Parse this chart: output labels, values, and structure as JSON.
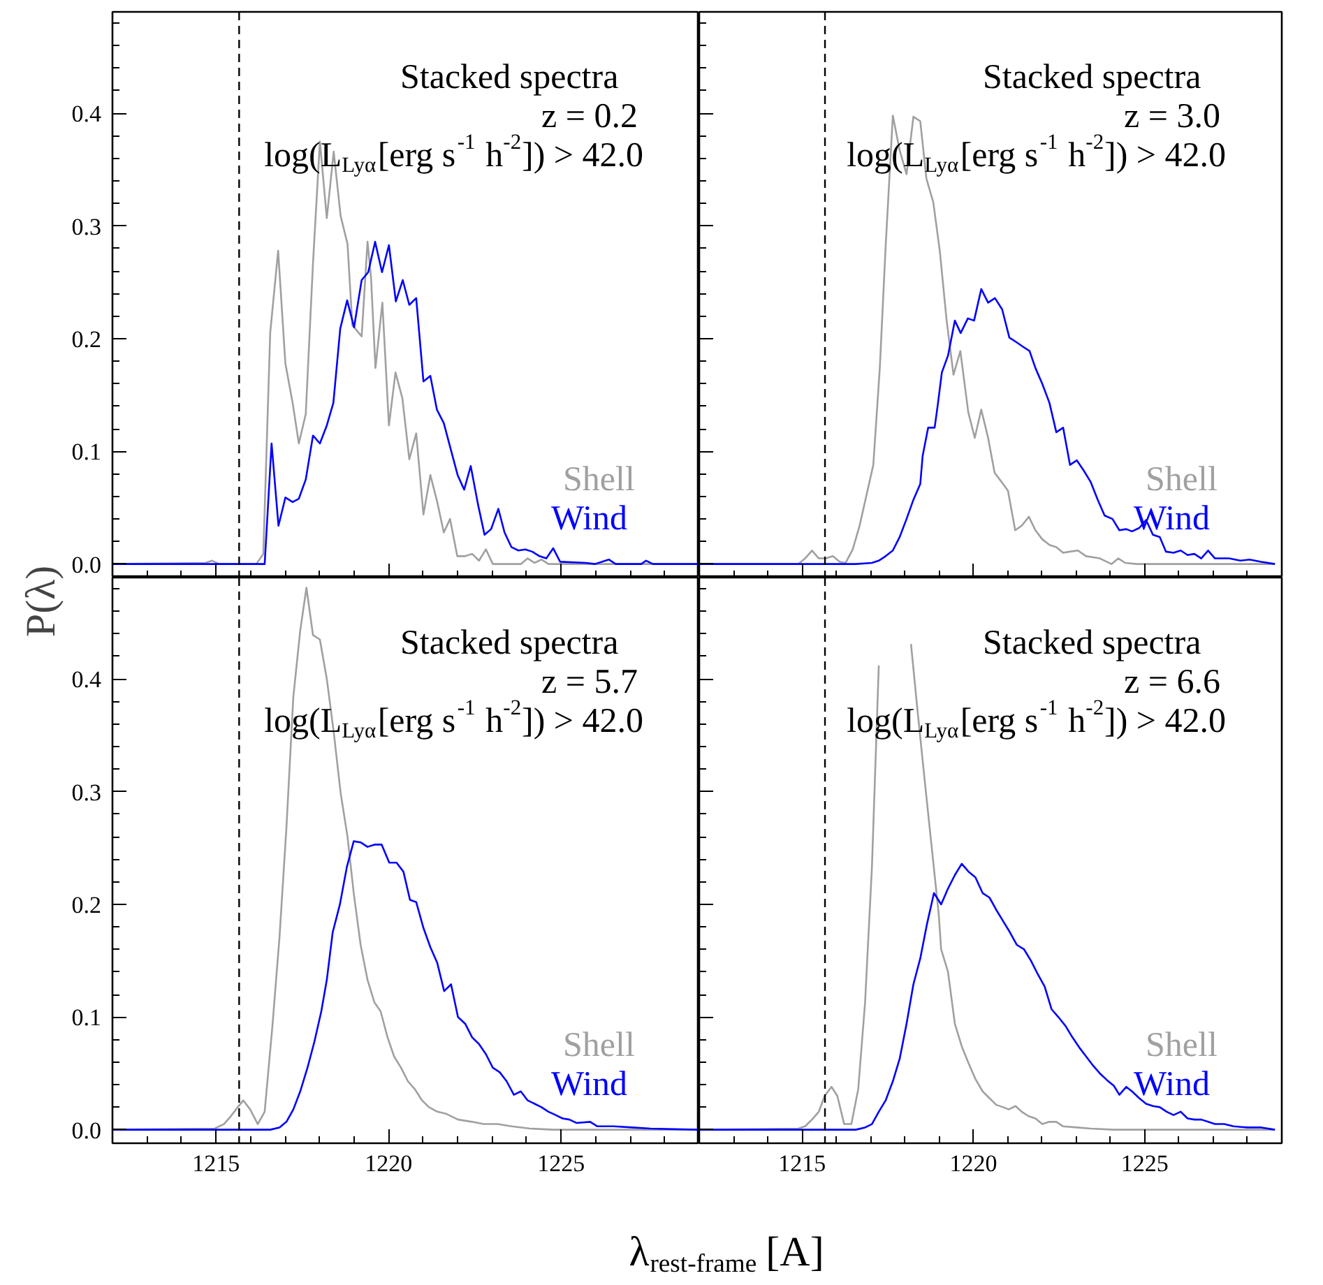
{
  "chart_data": [
    {
      "type": "line",
      "ylabel": "P(λ)",
      "xlim": [
        1212,
        1229
      ],
      "ylim": [
        -0.012,
        0.49
      ],
      "xticks": [
        1215,
        1220,
        1225
      ],
      "yticks": [
        {
          "value": 0,
          "label": "0.0"
        },
        0.1,
        0.2,
        0.3,
        0.4
      ],
      "tick_labels": "y",
      "annotations": [
        "Stacked spectra",
        "z = 0.2",
        "log(L$_{Lyα}$[erg s$^{-1}$ h$^{-2}$]) > 42.0"
      ],
      "ref_lines": [
        {
          "axis": "x",
          "value": 1215.67,
          "color": "#000000",
          "line_style": "dashed"
        }
      ],
      "series": [
        {
          "name": "Shell",
          "color": "#a0a0a0",
          "x": [
            1212.0,
            1214.69,
            1214.89,
            1215.09,
            1216.17,
            1216.37,
            1216.57,
            1216.8,
            1217.01,
            1217.22,
            1217.4,
            1217.6,
            1217.81,
            1218.01,
            1218.21,
            1218.41,
            1218.61,
            1218.81,
            1218.95,
            1219.22,
            1219.39,
            1219.49,
            1219.62,
            1219.82,
            1220.01,
            1220.2,
            1220.4,
            1220.6,
            1220.8,
            1221.01,
            1221.21,
            1221.41,
            1221.6,
            1221.78,
            1221.99,
            1222.22,
            1222.42,
            1222.62,
            1222.82,
            1223.02,
            1223.83,
            1224.03,
            1224.23,
            1224.43,
            1224.63,
            1228.94
          ],
          "values": [
            0,
            0.001,
            0.003,
            0,
            0,
            0.009,
            0.205,
            0.278,
            0.178,
            0.143,
            0.107,
            0.133,
            0.267,
            0.375,
            0.307,
            0.366,
            0.309,
            0.284,
            0.212,
            0.202,
            0.286,
            0.255,
            0.174,
            0.232,
            0.123,
            0.17,
            0.147,
            0.093,
            0.116,
            0.044,
            0.079,
            0.055,
            0.028,
            0.04,
            0.007,
            0.007,
            0.009,
            0.003,
            0.013,
            0,
            0,
            0.005,
            0.001,
            0.004,
            0,
            0
          ]
        },
        {
          "name": "Wind",
          "color": "#0000ff",
          "x": [
            1212.0,
            1216.41,
            1216.61,
            1216.81,
            1217.01,
            1217.22,
            1217.4,
            1217.6,
            1217.81,
            1218.01,
            1218.21,
            1218.4,
            1218.6,
            1218.8,
            1219.0,
            1219.22,
            1219.41,
            1219.61,
            1219.81,
            1220.01,
            1220.21,
            1220.41,
            1220.6,
            1220.8,
            1221.01,
            1221.21,
            1221.4,
            1221.6,
            1221.8,
            1222.0,
            1222.19,
            1222.38,
            1222.59,
            1222.78,
            1222.97,
            1223.18,
            1223.36,
            1223.56,
            1223.76,
            1223.96,
            1224.16,
            1224.37,
            1224.57,
            1224.77,
            1224.97,
            1225.71,
            1225.98,
            1226.38,
            1226.58,
            1227.32,
            1227.46,
            1227.66,
            1228.94
          ],
          "values": [
            0,
            0,
            0.107,
            0.034,
            0.059,
            0.055,
            0.058,
            0.075,
            0.114,
            0.107,
            0.123,
            0.143,
            0.209,
            0.234,
            0.21,
            0.252,
            0.259,
            0.286,
            0.259,
            0.283,
            0.233,
            0.252,
            0.23,
            0.236,
            0.162,
            0.167,
            0.137,
            0.125,
            0.102,
            0.079,
            0.066,
            0.087,
            0.053,
            0.026,
            0.031,
            0.049,
            0.028,
            0.015,
            0.012,
            0.013,
            0.011,
            0.007,
            0.005,
            0.014,
            0.002,
            0.001,
            0,
            0.004,
            0,
            0,
            0.003,
            0,
            0
          ]
        }
      ]
    },
    {
      "type": "line",
      "xlim": [
        1212,
        1229
      ],
      "ylim": [
        -0.012,
        0.49
      ],
      "xticks": [
        1215,
        1220,
        1225
      ],
      "yticks": [
        0,
        0.1,
        0.2,
        0.3,
        0.4
      ],
      "tick_labels": false,
      "annotations": [
        "Stacked spectra",
        "z = 3.0",
        "log(L$_{Lyα}$[erg s$^{-1}$ h$^{-2}$]) > 42.0"
      ],
      "ref_lines": [
        {
          "axis": "x",
          "value": 1215.67,
          "color": "#000000",
          "line_style": "dashed"
        }
      ],
      "series": [
        {
          "name": "Shell",
          "color": "#a0a0a0",
          "x": [
            1212.0,
            1214.89,
            1215.09,
            1215.29,
            1215.49,
            1215.7,
            1215.9,
            1216.1,
            1216.27,
            1216.48,
            1216.68,
            1216.88,
            1217.08,
            1217.27,
            1217.44,
            1217.65,
            1217.85,
            1218.05,
            1218.25,
            1218.45,
            1218.63,
            1218.83,
            1219.02,
            1219.22,
            1219.42,
            1219.62,
            1219.85,
            1220.04,
            1220.23,
            1220.43,
            1220.62,
            1220.82,
            1221.01,
            1221.22,
            1221.41,
            1221.62,
            1221.81,
            1222.01,
            1222.22,
            1222.42,
            1222.62,
            1222.82,
            1223.05,
            1223.29,
            1223.69,
            1224.03,
            1224.23,
            1224.43,
            1224.77,
            1228.8
          ],
          "values": [
            0,
            0,
            0.005,
            0.012,
            0.005,
            0.005,
            0.007,
            0.002,
            0.001,
            0.013,
            0.034,
            0.061,
            0.088,
            0.174,
            0.282,
            0.398,
            0.367,
            0.346,
            0.397,
            0.393,
            0.342,
            0.321,
            0.278,
            0.216,
            0.168,
            0.189,
            0.135,
            0.112,
            0.137,
            0.112,
            0.081,
            0.073,
            0.065,
            0.03,
            0.034,
            0.042,
            0.03,
            0.022,
            0.017,
            0.015,
            0.01,
            0.011,
            0.012,
            0.007,
            0.005,
            0,
            0.005,
            0.001,
            0,
            0
          ]
        },
        {
          "name": "Wind",
          "color": "#0000ff",
          "x": [
            1212.0,
            1216.57,
            1217.04,
            1217.24,
            1217.44,
            1217.65,
            1217.85,
            1218.05,
            1218.25,
            1218.45,
            1218.52,
            1218.68,
            1218.87,
            1218.96,
            1219.08,
            1219.26,
            1219.46,
            1219.63,
            1219.84,
            1220.02,
            1220.23,
            1220.43,
            1220.63,
            1220.84,
            1221.05,
            1221.25,
            1221.44,
            1221.64,
            1221.81,
            1222.01,
            1222.22,
            1222.42,
            1222.62,
            1222.82,
            1223.02,
            1223.22,
            1223.42,
            1223.63,
            1223.83,
            1224.06,
            1224.26,
            1224.46,
            1224.63,
            1224.84,
            1225.04,
            1225.24,
            1225.44,
            1225.62,
            1225.84,
            1226.05,
            1226.25,
            1226.45,
            1226.65,
            1226.85,
            1227.05,
            1227.46,
            1227.79,
            1228.06,
            1228.4,
            1228.8
          ],
          "values": [
            0,
            0,
            0.001,
            0.003,
            0.007,
            0.012,
            0.024,
            0.04,
            0.057,
            0.071,
            0.096,
            0.121,
            0.121,
            0.141,
            0.17,
            0.185,
            0.216,
            0.205,
            0.218,
            0.216,
            0.244,
            0.232,
            0.236,
            0.226,
            0.201,
            0.197,
            0.193,
            0.189,
            0.174,
            0.16,
            0.143,
            0.117,
            0.121,
            0.088,
            0.092,
            0.083,
            0.073,
            0.057,
            0.043,
            0.04,
            0.03,
            0.031,
            0.029,
            0.032,
            0.039,
            0.026,
            0.024,
            0.011,
            0.01,
            0.012,
            0.008,
            0.009,
            0.005,
            0.012,
            0.005,
            0.005,
            0.003,
            0.004,
            0.002,
            0
          ]
        }
      ]
    },
    {
      "type": "line",
      "xlabel": "λ$_{rest-frame}$[A]",
      "xlim": [
        1212,
        1229
      ],
      "ylim": [
        -0.012,
        0.49
      ],
      "xticks": [
        1215,
        1220,
        1225
      ],
      "yticks": [
        {
          "value": 0,
          "label": "0.0"
        },
        0.1,
        0.2,
        0.3,
        0.4
      ],
      "annotations": [
        "Stacked spectra",
        "z = 5.7",
        "log(L$_{Lyα}$[erg s$^{-1}$ h$^{-2}$]) > 42.0"
      ],
      "ref_lines": [
        {
          "axis": "x",
          "value": 1215.67,
          "color": "#000000",
          "line_style": "dashed"
        }
      ],
      "series": [
        {
          "name": "Shell",
          "color": "#a0a0a0",
          "x": [
            1212.0,
            1214.96,
            1215.23,
            1215.43,
            1215.63,
            1215.79,
            1215.99,
            1216.21,
            1216.41,
            1216.64,
            1216.84,
            1217.04,
            1217.24,
            1217.44,
            1217.62,
            1217.81,
            1218.01,
            1218.21,
            1218.41,
            1218.61,
            1218.81,
            1218.99,
            1219.19,
            1219.39,
            1219.59,
            1219.77,
            1219.97,
            1220.16,
            1220.36,
            1220.56,
            1220.76,
            1220.97,
            1221.17,
            1221.41,
            1221.68,
            1222.01,
            1222.42,
            1222.75,
            1223.16,
            1223.56,
            1224.1,
            1224.77,
            1228.94
          ],
          "values": [
            0,
            0.001,
            0.005,
            0.012,
            0.02,
            0.026,
            0.018,
            0.005,
            0.016,
            0.094,
            0.171,
            0.268,
            0.384,
            0.443,
            0.481,
            0.439,
            0.435,
            0.4,
            0.353,
            0.299,
            0.26,
            0.21,
            0.164,
            0.133,
            0.113,
            0.105,
            0.082,
            0.065,
            0.055,
            0.043,
            0.036,
            0.026,
            0.02,
            0.016,
            0.014,
            0.009,
            0.007,
            0.005,
            0.005,
            0.003,
            0.001,
            0,
            0
          ]
        },
        {
          "name": "Wind",
          "color": "#0000ff",
          "x": [
            1212.0,
            1216.57,
            1216.84,
            1217.04,
            1217.24,
            1217.44,
            1217.65,
            1217.85,
            1218.05,
            1218.21,
            1218.38,
            1218.59,
            1218.79,
            1218.99,
            1219.19,
            1219.39,
            1219.59,
            1219.8,
            1220.02,
            1220.23,
            1220.43,
            1220.62,
            1220.8,
            1221.01,
            1221.21,
            1221.41,
            1221.61,
            1221.81,
            1222.01,
            1222.22,
            1222.42,
            1222.62,
            1222.82,
            1223.02,
            1223.22,
            1223.42,
            1223.63,
            1223.83,
            1224.03,
            1224.23,
            1224.43,
            1224.63,
            1224.84,
            1225.04,
            1225.24,
            1225.44,
            1225.84,
            1226.05,
            1226.52,
            1227.05,
            1227.59,
            1228.94
          ],
          "values": [
            0,
            0,
            0.002,
            0.007,
            0.018,
            0.034,
            0.055,
            0.078,
            0.105,
            0.133,
            0.175,
            0.2,
            0.233,
            0.256,
            0.255,
            0.251,
            0.253,
            0.253,
            0.237,
            0.237,
            0.229,
            0.204,
            0.202,
            0.179,
            0.162,
            0.148,
            0.123,
            0.129,
            0.1,
            0.094,
            0.082,
            0.076,
            0.067,
            0.055,
            0.051,
            0.043,
            0.031,
            0.034,
            0.026,
            0.023,
            0.02,
            0.016,
            0.013,
            0.01,
            0.009,
            0.006,
            0.007,
            0.003,
            0.003,
            0.002,
            0.001,
            0
          ]
        }
      ]
    },
    {
      "type": "line",
      "xlim": [
        1212,
        1229
      ],
      "ylim": [
        -0.012,
        0.49
      ],
      "xticks": [
        1215,
        1220,
        1225
      ],
      "yticks": [
        0,
        0.1,
        0.2,
        0.3,
        0.4
      ],
      "tick_labels": "x",
      "annotations": [
        "Stacked spectra",
        "z = 6.6",
        "log(L$_{Lyα}$[erg s$^{-1}$ h$^{-2}$]) > 42.0"
      ],
      "ref_lines": [
        {
          "axis": "x",
          "value": 1215.67,
          "color": "#000000",
          "line_style": "dashed"
        }
      ],
      "series": [
        {
          "name": "Shell",
          "color": "#a0a0a0",
          "x": [
            1212.0,
            1214.89,
            1215.09,
            1215.29,
            1215.49,
            1215.66,
            1215.86,
            1216.03,
            1216.23,
            1216.44,
            1216.64,
            1216.84,
            1217.04,
            1217.24,
            1217.44,
            1217.7,
            1217.98,
            1218.18,
            1218.38,
            1218.59,
            1218.79,
            1218.99,
            1219.06,
            1219.26,
            1219.46,
            1219.66,
            1219.86,
            1220.06,
            1220.27,
            1220.47,
            1220.67,
            1220.87,
            1221.03,
            1221.23,
            1221.41,
            1221.61,
            1221.81,
            1222.01,
            1222.22,
            1222.42,
            1222.62,
            1223.02,
            1223.42,
            1224.1,
            1228.8
          ],
          "values": [
            0,
            0.001,
            0.003,
            0.009,
            0.016,
            0.03,
            0.038,
            0.03,
            0.005,
            0.005,
            0.036,
            0.113,
            0.233,
            0.412,
            null,
            null,
            null,
            0.431,
            0.369,
            0.307,
            0.249,
            0.191,
            0.16,
            0.14,
            0.094,
            0.074,
            0.059,
            0.045,
            0.034,
            0.028,
            0.022,
            0.02,
            0.018,
            0.021,
            0.016,
            0.012,
            0.01,
            0.005,
            0.007,
            0.007,
            0.003,
            0.002,
            0.001,
            0,
            0
          ]
        },
        {
          "name": "Wind",
          "color": "#0000ff",
          "x": [
            1212.0,
            1216.57,
            1216.84,
            1217.04,
            1217.24,
            1217.44,
            1217.65,
            1217.85,
            1218.05,
            1218.25,
            1218.45,
            1218.65,
            1218.85,
            1219.06,
            1219.26,
            1219.46,
            1219.66,
            1219.86,
            1220.06,
            1220.27,
            1220.47,
            1220.67,
            1220.87,
            1221.07,
            1221.27,
            1221.48,
            1221.68,
            1221.88,
            1222.08,
            1222.28,
            1222.48,
            1222.69,
            1222.89,
            1223.09,
            1223.29,
            1223.49,
            1223.69,
            1223.9,
            1224.1,
            1224.26,
            1224.46,
            1224.63,
            1224.84,
            1225.04,
            1225.24,
            1225.44,
            1225.64,
            1225.84,
            1226.05,
            1226.25,
            1226.45,
            1226.65,
            1226.85,
            1227.05,
            1227.32,
            1227.59,
            1227.99,
            1228.4,
            1228.8
          ],
          "values": [
            0,
            0,
            0.002,
            0.005,
            0.016,
            0.026,
            0.043,
            0.063,
            0.094,
            0.129,
            0.152,
            0.183,
            0.21,
            0.2,
            0.214,
            0.226,
            0.236,
            0.229,
            0.224,
            0.21,
            0.206,
            0.195,
            0.185,
            0.175,
            0.164,
            0.16,
            0.15,
            0.138,
            0.127,
            0.107,
            0.1,
            0.092,
            0.082,
            0.073,
            0.065,
            0.057,
            0.05,
            0.044,
            0.039,
            0.031,
            0.038,
            0.034,
            0.028,
            0.023,
            0.021,
            0.02,
            0.016,
            0.013,
            0.016,
            0.01,
            0.009,
            0.009,
            0.007,
            0.005,
            0.005,
            0.003,
            0.002,
            0.002,
            0
          ]
        }
      ]
    }
  ]
}
